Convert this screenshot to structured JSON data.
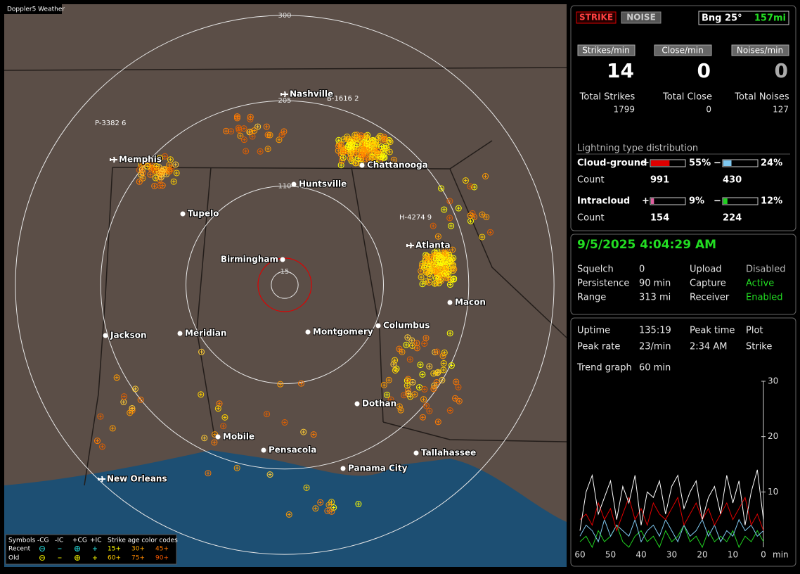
{
  "app_title": "Doppler5 Weather",
  "map": {
    "range_rings": [
      15,
      110,
      205,
      300
    ],
    "cities": [
      "Nashville",
      "Memphis",
      "Chattanooga",
      "Huntsville",
      "Tupelo",
      "Atlanta",
      "Birmingham",
      "Macon",
      "Jackson",
      "Meridian",
      "Montgomery",
      "Columbus",
      "Dothan",
      "Mobile",
      "Pensacola",
      "Tallahassee",
      "Panama City",
      "New Orleans"
    ],
    "strike_labels": [
      "B-1616 2",
      "P-3382 6",
      "H-4274 9"
    ],
    "legend": {
      "symbols_label": "Symbols",
      "symbols": [
        "-CG",
        "-IC",
        "+CG",
        "+IC"
      ],
      "age_title": "Strike age color codes",
      "rows": [
        {
          "label": "Recent",
          "ages": [
            "15+",
            "30+",
            "45+"
          ]
        },
        {
          "label": "Old",
          "ages": [
            "60+",
            "75+",
            "90+"
          ]
        }
      ]
    }
  },
  "header": {
    "strike": "STRIKE",
    "noise": "NOISE",
    "bearing": "Bng 25°",
    "distance": "157mi"
  },
  "rates": [
    {
      "label": "Strikes/min",
      "value": 14,
      "total_label": "Total Strikes",
      "total": 1799
    },
    {
      "label": "Close/min",
      "value": 0,
      "total_label": "Total Close",
      "total": 0
    },
    {
      "label": "Noises/min",
      "value": 0,
      "total_label": "Total Noises",
      "total": 127
    }
  ],
  "distribution": {
    "title": "Lightning type distribution",
    "count_label": "Count",
    "rows": [
      {
        "label": "Cloud-ground",
        "pos_sign": "+",
        "pos": {
          "value": 55,
          "label": "55%"
        },
        "pos_color": "#e00000",
        "neg_sign": "−",
        "neg": {
          "value": 24,
          "label": "24%"
        },
        "neg_color": "#7fc8f0",
        "pos_count": 991,
        "neg_count": 430
      },
      {
        "label": "Intracloud",
        "pos_sign": "+",
        "pos": {
          "value": 9,
          "label": "9%"
        },
        "pos_color": "#e060a0",
        "neg_sign": "−",
        "neg": {
          "value": 12,
          "label": "12%"
        },
        "neg_color": "#20d020",
        "pos_count": 154,
        "neg_count": 224
      }
    ]
  },
  "status": {
    "datetime": "9/5/2025 4:04:29 AM",
    "items": [
      {
        "label": "Squelch",
        "value": "0",
        "label2": "Upload",
        "value2": "Disabled",
        "color2": "#bbbbbb"
      },
      {
        "label": "Persistence",
        "value": "90 min",
        "label2": "Capture",
        "value2": "Active",
        "color2": "#22dd22"
      },
      {
        "label": "Range",
        "value": "313 mi",
        "label2": "Receiver",
        "value2": "Enabled",
        "color2": "#22dd22"
      }
    ]
  },
  "stats": {
    "uptime_label": "Uptime",
    "uptime": "135:19",
    "peak_time_label": "Peak time",
    "peak_time": "2:34 AM",
    "plot_label": "Plot",
    "plot": "Strike",
    "peak_rate_label": "Peak rate",
    "peak_rate": "23/min",
    "trend_label": "Trend graph",
    "trend_window": "60 min"
  },
  "chart_data": {
    "type": "line",
    "x": [
      60,
      58,
      56,
      54,
      52,
      50,
      48,
      46,
      44,
      42,
      40,
      38,
      36,
      34,
      32,
      30,
      28,
      26,
      24,
      22,
      20,
      18,
      16,
      14,
      12,
      10,
      8,
      6,
      4,
      2,
      0
    ],
    "xlim": [
      60,
      0
    ],
    "xticks": [
      60,
      50,
      40,
      30,
      20,
      10,
      0
    ],
    "x_unit": "min",
    "ylim": [
      0,
      30
    ],
    "yticks": [
      10,
      20,
      30
    ],
    "series": [
      {
        "color": "#ffffff",
        "values": [
          3,
          10,
          13,
          6,
          9,
          12,
          5,
          11,
          8,
          13,
          4,
          10,
          9,
          12,
          6,
          11,
          13,
          7,
          10,
          12,
          5,
          9,
          11,
          6,
          13,
          8,
          12,
          4,
          10,
          14,
          5
        ]
      },
      {
        "color": "#e00000",
        "values": [
          5,
          6,
          4,
          8,
          5,
          7,
          3,
          6,
          9,
          5,
          7,
          4,
          8,
          6,
          5,
          7,
          9,
          4,
          6,
          8,
          5,
          7,
          4,
          6,
          8,
          5,
          7,
          9,
          4,
          6,
          3
        ]
      },
      {
        "color": "#7fc8f0",
        "values": [
          2,
          4,
          3,
          1,
          5,
          2,
          4,
          3,
          2,
          5,
          1,
          3,
          4,
          2,
          5,
          3,
          1,
          4,
          2,
          3,
          5,
          2,
          4,
          1,
          3,
          2,
          5,
          3,
          4,
          2,
          3
        ]
      },
      {
        "color": "#20d020",
        "values": [
          1,
          2,
          0,
          3,
          1,
          2,
          4,
          1,
          0,
          2,
          3,
          1,
          2,
          0,
          3,
          1,
          2,
          4,
          1,
          2,
          0,
          3,
          1,
          2,
          1,
          3,
          0,
          2,
          1,
          3,
          1
        ]
      }
    ]
  }
}
